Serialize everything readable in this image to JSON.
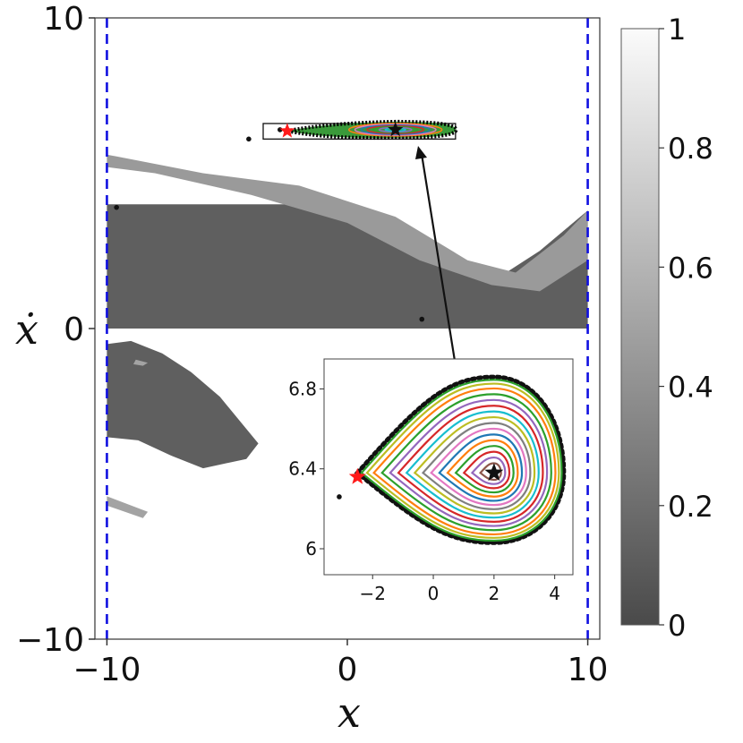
{
  "chart_data": {
    "type": "heatmap",
    "xlabel": "x",
    "ylabel": "ẋ",
    "xlim": [
      -10.5,
      10.5
    ],
    "ylim": [
      -10,
      10
    ],
    "x_ticks": [
      "−10",
      "0",
      "10"
    ],
    "y_ticks": [
      "10",
      "0",
      "−10"
    ],
    "x_tick_values": [
      -10,
      0,
      10
    ],
    "y_tick_values": [
      10,
      0,
      -10
    ],
    "boundaries": {
      "x": [
        -10,
        10
      ],
      "style": "dashed",
      "color": "#1010e0"
    },
    "colorbar": {
      "range": [
        0,
        1
      ],
      "tick_values": [
        0,
        0.2,
        0.4,
        0.6,
        0.8,
        1
      ],
      "tick_labels": [
        "0",
        "0.2",
        "0.4",
        "0.6",
        "0.8",
        "1"
      ],
      "colormap": "gray"
    },
    "regions": [
      {
        "name": "dark-band",
        "value": 0.12,
        "points": [
          [
            -10,
            4
          ],
          [
            0,
            4
          ],
          [
            2,
            3
          ],
          [
            4,
            2
          ],
          [
            6,
            1.5
          ],
          [
            8,
            2.5
          ],
          [
            10,
            3.8
          ],
          [
            10,
            0
          ],
          [
            -10,
            0
          ]
        ]
      },
      {
        "name": "light-band",
        "value": 0.45,
        "points": [
          [
            -10,
            5.6
          ],
          [
            -6,
            5
          ],
          [
            -2,
            4.6
          ],
          [
            2,
            3.6
          ],
          [
            5,
            2.2
          ],
          [
            7,
            1.8
          ],
          [
            9,
            3
          ],
          [
            10,
            3.8
          ],
          [
            10,
            2.2
          ],
          [
            8,
            1.2
          ],
          [
            6,
            1.4
          ],
          [
            3,
            2.2
          ],
          [
            0,
            3.4
          ],
          [
            -4,
            4.3
          ],
          [
            -8,
            5
          ],
          [
            -10,
            5.2
          ]
        ]
      },
      {
        "name": "lower-lobe",
        "value": 0.12,
        "points": [
          [
            -10,
            -0.5
          ],
          [
            -9,
            -0.4
          ],
          [
            -7.7,
            -0.8
          ],
          [
            -6.5,
            -1.4
          ],
          [
            -5.3,
            -2.2
          ],
          [
            -3.7,
            -3.7
          ],
          [
            -4.2,
            -4.2
          ],
          [
            -6,
            -4.5
          ],
          [
            -7.3,
            -4.1
          ],
          [
            -8.7,
            -3.6
          ],
          [
            -10,
            -3.5
          ]
        ]
      },
      {
        "name": "lower-streak",
        "value": 0.5,
        "points": [
          [
            -10,
            -5.4
          ],
          [
            -8.3,
            -5.9
          ],
          [
            -8.5,
            -6.1
          ],
          [
            -10,
            -5.7
          ]
        ]
      },
      {
        "name": "small-patch",
        "value": 0.5,
        "points": [
          [
            -8.8,
            -1
          ],
          [
            -8.3,
            -1.1
          ],
          [
            -8.5,
            -1.2
          ],
          [
            -8.9,
            -1.15
          ]
        ]
      }
    ],
    "scatter_points": [
      [
        -4.1,
        6.1
      ],
      [
        -9.6,
        3.9
      ],
      [
        3.1,
        0.3
      ],
      [
        -2.8,
        6.4
      ]
    ],
    "main_island": {
      "center": [
        2,
        6.4
      ],
      "x_range": [
        -3.5,
        4.5
      ],
      "y_range": [
        6.1,
        6.6
      ]
    },
    "saddle_point": {
      "x": -2.5,
      "y": 6.36,
      "marker": "star",
      "color": "#ff1a1a"
    },
    "center_point": {
      "x": 2.0,
      "y": 6.38,
      "marker": "star",
      "color": "#111111"
    },
    "inset": {
      "type": "line",
      "xlim": [
        -3.6,
        4.6
      ],
      "ylim": [
        5.87,
        6.95
      ],
      "x_ticks": [
        "−2",
        "0",
        "2",
        "4"
      ],
      "x_tick_values": [
        -2,
        0,
        2,
        4
      ],
      "y_ticks": [
        "6.8",
        "6.4",
        "6"
      ],
      "y_tick_values": [
        6.8,
        6.4,
        6.0
      ],
      "center": [
        2.0,
        6.38
      ],
      "saddle": [
        -2.5,
        6.36
      ],
      "separatrix_right_x": 4.3,
      "separatrix_top_y": 6.86,
      "separatrix_bottom_y": 6.03,
      "outlier_point": [
        -3.1,
        6.26
      ],
      "orbit_fractions": [
        0.1,
        0.16,
        0.22,
        0.28,
        0.34,
        0.4,
        0.46,
        0.52,
        0.58,
        0.64,
        0.7,
        0.76,
        0.82,
        0.88,
        0.93,
        0.97
      ],
      "orbit_colors": [
        "#8c564b",
        "#9467bd",
        "#d62728",
        "#2ca02c",
        "#ff7f0e",
        "#1f77b4",
        "#e377c2",
        "#7f7f7f",
        "#bcbd22",
        "#17becf",
        "#d62728",
        "#9467bd",
        "#2ca02c",
        "#ff7f0e",
        "#bcbd22",
        "#2ca02c"
      ]
    }
  }
}
